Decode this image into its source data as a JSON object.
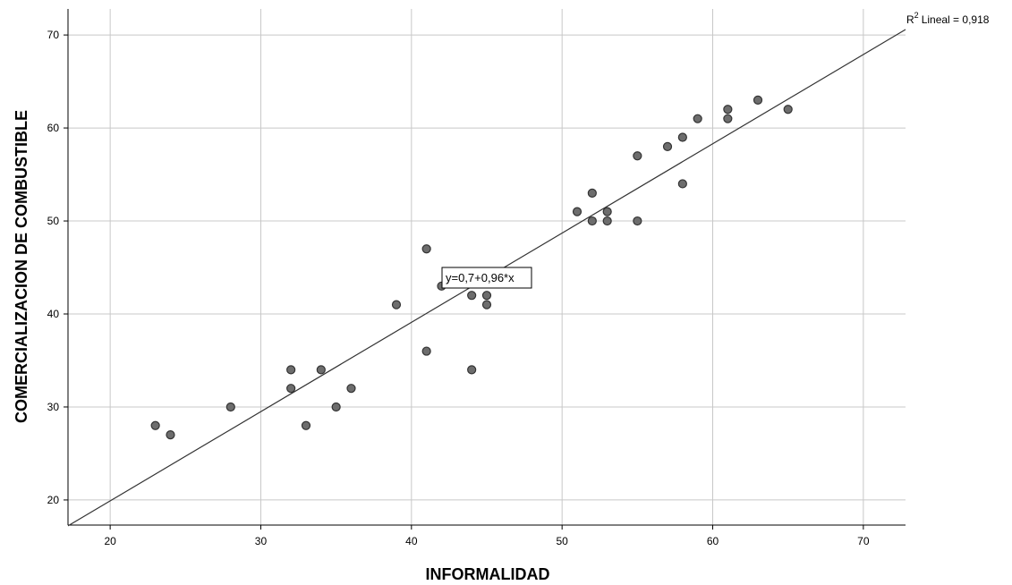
{
  "chart_data": {
    "type": "scatter",
    "xlabel": "INFORMALIDAD",
    "ylabel": "COMERCIALIZACION DE COMBUSTIBLE",
    "xlim": [
      17.2,
      72.8
    ],
    "ylim": [
      17.3,
      72.8
    ],
    "xticks": [
      "20",
      "30",
      "40",
      "50",
      "60",
      "70"
    ],
    "yticks": [
      "20",
      "30",
      "40",
      "50",
      "60",
      "70"
    ],
    "grid": true,
    "points": [
      {
        "x": 23,
        "y": 28
      },
      {
        "x": 24,
        "y": 27
      },
      {
        "x": 28,
        "y": 30
      },
      {
        "x": 32,
        "y": 34
      },
      {
        "x": 32,
        "y": 32
      },
      {
        "x": 33,
        "y": 28
      },
      {
        "x": 34,
        "y": 34
      },
      {
        "x": 35,
        "y": 30
      },
      {
        "x": 36,
        "y": 32
      },
      {
        "x": 39,
        "y": 41
      },
      {
        "x": 41,
        "y": 47
      },
      {
        "x": 41,
        "y": 36
      },
      {
        "x": 42,
        "y": 43
      },
      {
        "x": 44,
        "y": 42
      },
      {
        "x": 44,
        "y": 34
      },
      {
        "x": 45,
        "y": 42
      },
      {
        "x": 45,
        "y": 41
      },
      {
        "x": 51,
        "y": 51
      },
      {
        "x": 52,
        "y": 53
      },
      {
        "x": 52,
        "y": 50
      },
      {
        "x": 53,
        "y": 51
      },
      {
        "x": 53,
        "y": 50
      },
      {
        "x": 55,
        "y": 57
      },
      {
        "x": 55,
        "y": 50
      },
      {
        "x": 57,
        "y": 58
      },
      {
        "x": 58,
        "y": 59
      },
      {
        "x": 58,
        "y": 54
      },
      {
        "x": 59,
        "y": 61
      },
      {
        "x": 61,
        "y": 62
      },
      {
        "x": 61,
        "y": 61
      },
      {
        "x": 63,
        "y": 63
      },
      {
        "x": 65,
        "y": 62
      }
    ],
    "fit_line": {
      "intercept": 0.7,
      "slope": 0.96,
      "equation": "y=0,7+0,96*x"
    },
    "r2_label": "Lineal = 0,918",
    "r2_prefix": "R",
    "r2_sup": "2",
    "colors": {
      "point_fill": "#6d6d6d",
      "point_stroke": "#333333",
      "grid": "#c8c8c8",
      "line": "#333333",
      "axis": "#000000"
    }
  }
}
